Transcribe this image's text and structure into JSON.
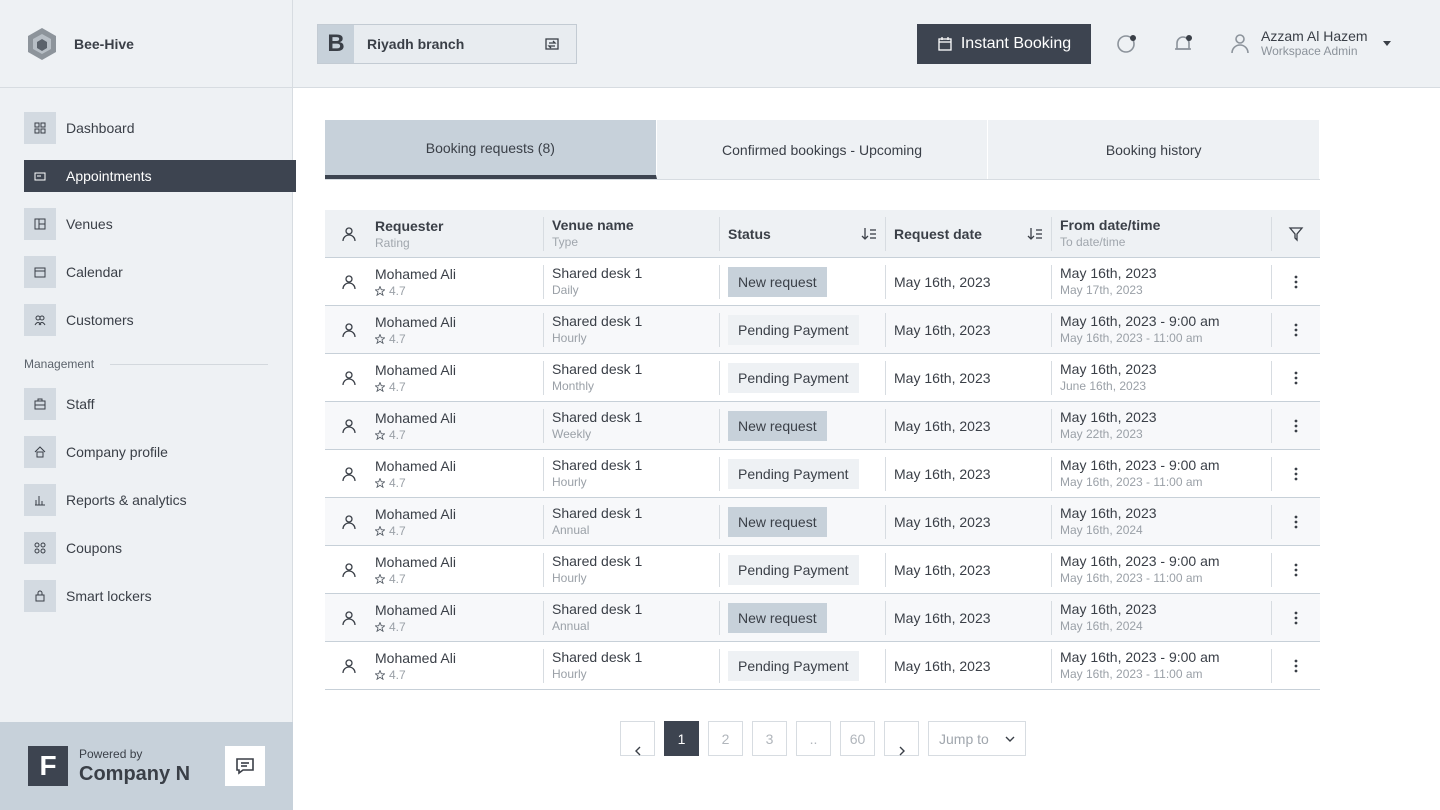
{
  "brand": {
    "name": "Bee-Hive"
  },
  "sidebar": {
    "items": [
      {
        "label": "Dashboard",
        "icon": "dashboard-icon"
      },
      {
        "label": "Appointments",
        "icon": "appointments-icon"
      },
      {
        "label": "Venues",
        "icon": "venues-icon"
      },
      {
        "label": "Calendar",
        "icon": "calendar-icon"
      },
      {
        "label": "Customers",
        "icon": "customers-icon"
      }
    ],
    "section_title": "Management",
    "management_items": [
      {
        "label": "Staff",
        "icon": "staff-icon"
      },
      {
        "label": "Company profile",
        "icon": "company-icon"
      },
      {
        "label": "Reports & analytics",
        "icon": "reports-icon"
      },
      {
        "label": "Coupons",
        "icon": "coupons-icon"
      },
      {
        "label": "Smart lockers",
        "icon": "lock-icon"
      }
    ],
    "active": "Appointments",
    "footer": {
      "logo_letter": "F",
      "powered_by": "Powered by",
      "company": "Company N"
    }
  },
  "topbar": {
    "branch_letter": "B",
    "branch_name": "Riyadh branch",
    "instant_booking": "Instant Booking",
    "user_name": "Azzam Al Hazem",
    "user_role": "Workspace Admin"
  },
  "tabs": [
    {
      "label": "Booking requests (8)",
      "active": true
    },
    {
      "label": "Confirmed bookings - Upcoming",
      "active": false
    },
    {
      "label": "Booking history",
      "active": false
    }
  ],
  "table": {
    "headers": {
      "requester": "Requester",
      "rating": "Rating",
      "venue": "Venue name",
      "type": "Type",
      "status": "Status",
      "request_date": "Request date",
      "from": "From date/time",
      "to": "To date/time"
    },
    "rows": [
      {
        "requester": "Mohamed Ali",
        "rating": "4.7",
        "venue": "Shared desk 1",
        "type": "Daily",
        "status": "New request",
        "status_kind": "new",
        "request_date": "May 16th, 2023",
        "from": "May 16th, 2023",
        "to": "May 17th, 2023"
      },
      {
        "requester": "Mohamed Ali",
        "rating": "4.7",
        "venue": "Shared desk 1",
        "type": "Hourly",
        "status": "Pending Payment",
        "status_kind": "pend",
        "request_date": "May 16th, 2023",
        "from": "May 16th, 2023 - 9:00 am",
        "to": "May 16th, 2023 - 11:00 am"
      },
      {
        "requester": "Mohamed Ali",
        "rating": "4.7",
        "venue": "Shared desk 1",
        "type": "Monthly",
        "status": "Pending Payment",
        "status_kind": "pend",
        "request_date": "May 16th, 2023",
        "from": "May 16th, 2023",
        "to": "June 16th, 2023"
      },
      {
        "requester": "Mohamed Ali",
        "rating": "4.7",
        "venue": "Shared desk 1",
        "type": "Weekly",
        "status": "New request",
        "status_kind": "new",
        "request_date": "May 16th, 2023",
        "from": "May 16th, 2023",
        "to": "May 22th, 2023"
      },
      {
        "requester": "Mohamed Ali",
        "rating": "4.7",
        "venue": "Shared desk 1",
        "type": "Hourly",
        "status": "Pending Payment",
        "status_kind": "pend",
        "request_date": "May 16th, 2023",
        "from": "May 16th, 2023 - 9:00 am",
        "to": "May 16th, 2023 - 11:00 am"
      },
      {
        "requester": "Mohamed Ali",
        "rating": "4.7",
        "venue": "Shared desk 1",
        "type": "Annual",
        "status": "New request",
        "status_kind": "new",
        "request_date": "May 16th, 2023",
        "from": "May 16th, 2023",
        "to": "May 16th, 2024"
      },
      {
        "requester": "Mohamed Ali",
        "rating": "4.7",
        "venue": "Shared desk 1",
        "type": "Hourly",
        "status": "Pending Payment",
        "status_kind": "pend",
        "request_date": "May 16th, 2023",
        "from": "May 16th, 2023 - 9:00 am",
        "to": "May 16th, 2023 - 11:00 am"
      },
      {
        "requester": "Mohamed Ali",
        "rating": "4.7",
        "venue": "Shared desk 1",
        "type": "Annual",
        "status": "New request",
        "status_kind": "new",
        "request_date": "May 16th, 2023",
        "from": "May 16th, 2023",
        "to": "May 16th, 2024"
      },
      {
        "requester": "Mohamed Ali",
        "rating": "4.7",
        "venue": "Shared desk 1",
        "type": "Hourly",
        "status": "Pending Payment",
        "status_kind": "pend",
        "request_date": "May 16th, 2023",
        "from": "May 16th, 2023 - 9:00 am",
        "to": "May 16th, 2023 - 11:00 am"
      }
    ]
  },
  "pagination": {
    "pages": [
      "1",
      "2",
      "3",
      "..",
      "60"
    ],
    "current": "1",
    "jump_to": "Jump to"
  },
  "colors": {
    "accent": "#3d4450",
    "badge_new": "#c7d1da",
    "badge_pending": "#eef1f4"
  }
}
